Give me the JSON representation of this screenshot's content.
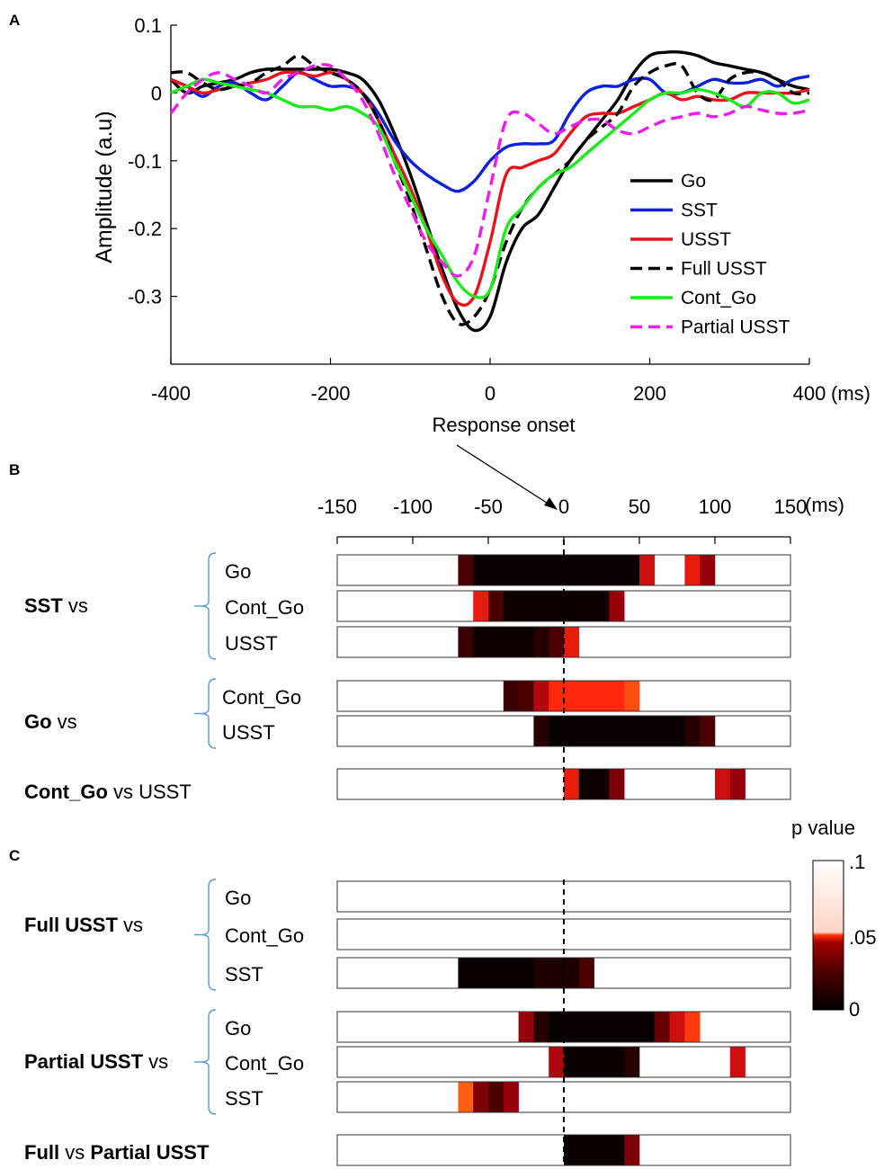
{
  "panels": {
    "a": {
      "letter": "A"
    },
    "b": {
      "letter": "B"
    },
    "c": {
      "letter": "C"
    }
  },
  "chart_data": [
    {
      "id": "A",
      "type": "line",
      "title": "",
      "xlabel": "Response onset",
      "ylabel": "Amplitude (a.u)",
      "x_unit": "(ms)",
      "xlim": [
        -400,
        400
      ],
      "ylim": [
        -0.4,
        0.1
      ],
      "xticks": [
        -400,
        -200,
        0,
        200,
        400
      ],
      "xtick_labels": [
        "-400",
        "-200",
        "0",
        "200",
        "400"
      ],
      "yticks": [
        0.1,
        0,
        -0.1,
        -0.2,
        -0.3
      ],
      "ytick_labels": [
        "0.1",
        "0",
        "-0.1",
        "-0.2",
        "-0.3"
      ],
      "legend_position": "center-right",
      "series": [
        {
          "name": "Go",
          "color": "#000000",
          "style": "solid",
          "x": [
            -400,
            -380,
            -360,
            -340,
            -320,
            -300,
            -280,
            -260,
            -240,
            -220,
            -200,
            -180,
            -160,
            -140,
            -120,
            -100,
            -80,
            -60,
            -40,
            -20,
            0,
            20,
            40,
            60,
            80,
            100,
            120,
            140,
            160,
            180,
            200,
            220,
            240,
            260,
            280,
            300,
            320,
            340,
            360,
            380,
            400
          ],
          "y": [
            0.02,
            0,
            0.01,
            0.015,
            0.02,
            0.03,
            0.035,
            0.035,
            0.035,
            0.035,
            0.035,
            0.03,
            0.02,
            -0.01,
            -0.06,
            -0.12,
            -0.19,
            -0.26,
            -0.32,
            -0.35,
            -0.33,
            -0.25,
            -0.2,
            -0.18,
            -0.14,
            -0.1,
            -0.07,
            -0.04,
            -0.01,
            0.03,
            0.055,
            0.06,
            0.06,
            0.055,
            0.045,
            0.04,
            0.035,
            0.03,
            0.02,
            0.01,
            0.005
          ]
        },
        {
          "name": "SST",
          "color": "#0b22dd",
          "style": "solid",
          "x": [
            -400,
            -380,
            -360,
            -340,
            -320,
            -300,
            -280,
            -260,
            -240,
            -220,
            -200,
            -180,
            -160,
            -140,
            -120,
            -100,
            -80,
            -60,
            -40,
            -20,
            0,
            20,
            40,
            60,
            80,
            100,
            120,
            140,
            160,
            180,
            200,
            220,
            240,
            260,
            280,
            300,
            320,
            340,
            360,
            380,
            400
          ],
          "y": [
            0.02,
            0.01,
            -0.005,
            0.01,
            0.015,
            0.0,
            -0.01,
            0.01,
            0.03,
            0.02,
            0.01,
            0.01,
            0.0,
            -0.03,
            -0.07,
            -0.1,
            -0.12,
            -0.135,
            -0.145,
            -0.13,
            -0.1,
            -0.08,
            -0.075,
            -0.075,
            -0.07,
            -0.03,
            0.0,
            0.01,
            0.01,
            0.02,
            0.02,
            0.0,
            0.0,
            0.01,
            0.02,
            0.015,
            0.015,
            0.02,
            0.01,
            0.02,
            0.025
          ]
        },
        {
          "name": "USST",
          "color": "#e8141c",
          "style": "solid",
          "x": [
            -400,
            -380,
            -360,
            -340,
            -320,
            -300,
            -280,
            -260,
            -240,
            -220,
            -200,
            -180,
            -160,
            -140,
            -120,
            -100,
            -80,
            -60,
            -40,
            -20,
            0,
            20,
            40,
            60,
            80,
            100,
            120,
            140,
            160,
            180,
            200,
            220,
            240,
            260,
            280,
            300,
            320,
            340,
            360,
            380,
            400
          ],
          "y": [
            0.02,
            0.01,
            0.0,
            0.005,
            0.01,
            0.015,
            0.02,
            0.03,
            0.03,
            0.025,
            0.03,
            0.02,
            0.0,
            -0.04,
            -0.09,
            -0.14,
            -0.2,
            -0.27,
            -0.31,
            -0.3,
            -0.22,
            -0.12,
            -0.11,
            -0.1,
            -0.09,
            -0.06,
            -0.035,
            -0.03,
            -0.03,
            -0.02,
            -0.01,
            0.0,
            -0.01,
            -0.005,
            -0.01,
            -0.01,
            0.0,
            0.0,
            0.0,
            0.0,
            0.005
          ]
        },
        {
          "name": "Full USST",
          "color": "#000000",
          "style": "dashed",
          "x": [
            -400,
            -380,
            -360,
            -340,
            -320,
            -300,
            -280,
            -260,
            -240,
            -220,
            -200,
            -180,
            -160,
            -140,
            -120,
            -100,
            -80,
            -60,
            -40,
            -20,
            0,
            20,
            40,
            60,
            80,
            100,
            120,
            140,
            160,
            180,
            200,
            220,
            240,
            260,
            280,
            300,
            320,
            340,
            360,
            380,
            400
          ],
          "y": [
            0.03,
            0.03,
            0.015,
            0.005,
            0.01,
            0.015,
            0.03,
            0.04,
            0.055,
            0.04,
            0.03,
            0.02,
            0.0,
            -0.04,
            -0.1,
            -0.16,
            -0.23,
            -0.3,
            -0.34,
            -0.33,
            -0.29,
            -0.22,
            -0.17,
            -0.14,
            -0.12,
            -0.1,
            -0.07,
            -0.05,
            -0.03,
            0.01,
            0.03,
            0.04,
            0.04,
            0.0,
            -0.01,
            0.02,
            0.03,
            0.03,
            0.02,
            0.0,
            0.0
          ]
        },
        {
          "name": "Cont_Go",
          "color": "#1cea1c",
          "style": "solid",
          "x": [
            -400,
            -380,
            -360,
            -340,
            -320,
            -300,
            -280,
            -260,
            -240,
            -220,
            -200,
            -180,
            -160,
            -140,
            -120,
            -100,
            -80,
            -60,
            -40,
            -20,
            0,
            20,
            40,
            60,
            80,
            100,
            120,
            140,
            160,
            180,
            200,
            220,
            240,
            260,
            280,
            300,
            320,
            340,
            360,
            380,
            400
          ],
          "y": [
            0.0,
            0.01,
            0.02,
            0.015,
            0.01,
            0.005,
            0.0,
            -0.01,
            -0.02,
            -0.02,
            -0.025,
            -0.02,
            -0.03,
            -0.05,
            -0.1,
            -0.15,
            -0.2,
            -0.24,
            -0.28,
            -0.3,
            -0.29,
            -0.2,
            -0.17,
            -0.14,
            -0.12,
            -0.11,
            -0.09,
            -0.07,
            -0.05,
            -0.03,
            -0.01,
            0.0,
            0.0,
            0.005,
            0.0,
            -0.01,
            -0.02,
            0.0,
            0.0,
            -0.015,
            -0.01
          ]
        },
        {
          "name": "Partial USST",
          "color": "#ee1cee",
          "style": "dashed",
          "x": [
            -400,
            -380,
            -360,
            -340,
            -320,
            -300,
            -280,
            -260,
            -240,
            -220,
            -200,
            -180,
            -160,
            -140,
            -120,
            -100,
            -80,
            -60,
            -40,
            -20,
            0,
            20,
            40,
            60,
            80,
            100,
            120,
            140,
            160,
            180,
            200,
            220,
            240,
            260,
            280,
            300,
            320,
            340,
            360,
            380,
            400
          ],
          "y": [
            -0.03,
            0.0,
            0.02,
            0.03,
            0.02,
            0.01,
            0.0,
            0.02,
            0.03,
            0.04,
            0.04,
            0.02,
            -0.01,
            -0.06,
            -0.12,
            -0.17,
            -0.22,
            -0.25,
            -0.27,
            -0.24,
            -0.14,
            -0.04,
            -0.03,
            -0.045,
            -0.06,
            -0.05,
            -0.04,
            -0.04,
            -0.055,
            -0.06,
            -0.05,
            -0.04,
            -0.035,
            -0.03,
            -0.035,
            -0.03,
            -0.02,
            -0.025,
            -0.03,
            -0.03,
            -0.025
          ]
        }
      ]
    },
    {
      "id": "B",
      "type": "heatmap",
      "xlim": [
        -150,
        150
      ],
      "x_unit": "(ms)",
      "xticks": [
        -150,
        -100,
        -50,
        0,
        50,
        100,
        150
      ],
      "xtick_labels": [
        "-150",
        "-100",
        "-50",
        "0",
        "50",
        "100",
        "150"
      ],
      "annotation": "Response onset",
      "groups": [
        {
          "label_bold": "SST",
          "label_rest": " vs",
          "rows": [
            {
              "label": "Go",
              "segments": [
                {
                  "start": -70,
                  "end": -60,
                  "p": 0.02
                },
                {
                  "start": -60,
                  "end": 50,
                  "p": 0.002
                },
                {
                  "start": 50,
                  "end": 60,
                  "p": 0.045
                },
                {
                  "start": 80,
                  "end": 90,
                  "p": 0.05
                },
                {
                  "start": 90,
                  "end": 100,
                  "p": 0.035
                }
              ]
            },
            {
              "label": "Cont_Go",
              "segments": [
                {
                  "start": -60,
                  "end": -50,
                  "p": 0.05
                },
                {
                  "start": -50,
                  "end": -40,
                  "p": 0.02
                },
                {
                  "start": -40,
                  "end": 30,
                  "p": 0.004
                },
                {
                  "start": 30,
                  "end": 40,
                  "p": 0.035
                }
              ]
            },
            {
              "label": "USST",
              "segments": [
                {
                  "start": -70,
                  "end": -60,
                  "p": 0.015
                },
                {
                  "start": -60,
                  "end": -20,
                  "p": 0.004
                },
                {
                  "start": -20,
                  "end": -10,
                  "p": 0.01
                },
                {
                  "start": -10,
                  "end": 0,
                  "p": 0.02
                },
                {
                  "start": 0,
                  "end": 10,
                  "p": 0.05
                }
              ]
            }
          ]
        },
        {
          "label_bold": "Go",
          "label_rest": " vs",
          "rows": [
            {
              "label": "Cont_Go",
              "segments": [
                {
                  "start": -40,
                  "end": -30,
                  "p": 0.015
                },
                {
                  "start": -30,
                  "end": -20,
                  "p": 0.02
                },
                {
                  "start": -20,
                  "end": -10,
                  "p": 0.04
                },
                {
                  "start": -10,
                  "end": 40,
                  "p": 0.055
                },
                {
                  "start": 40,
                  "end": 50,
                  "p": 0.065
                }
              ]
            },
            {
              "label": "USST",
              "segments": [
                {
                  "start": -20,
                  "end": -10,
                  "p": 0.01
                },
                {
                  "start": -10,
                  "end": 80,
                  "p": 0.002
                },
                {
                  "start": 80,
                  "end": 90,
                  "p": 0.01
                },
                {
                  "start": 90,
                  "end": 100,
                  "p": 0.02
                }
              ]
            }
          ]
        },
        {
          "label_bold": "Cont_Go",
          "label_rest": " vs USST",
          "single": true,
          "rows": [
            {
              "label": "",
              "segments": [
                {
                  "start": 0,
                  "end": 10,
                  "p": 0.05
                },
                {
                  "start": 10,
                  "end": 30,
                  "p": 0.004
                },
                {
                  "start": 30,
                  "end": 40,
                  "p": 0.03
                },
                {
                  "start": 100,
                  "end": 110,
                  "p": 0.045
                },
                {
                  "start": 110,
                  "end": 120,
                  "p": 0.035
                }
              ]
            }
          ]
        }
      ]
    },
    {
      "id": "C",
      "type": "heatmap",
      "xlim": [
        -150,
        150
      ],
      "colorbar": {
        "title": "p value",
        "ticks": [
          ".1",
          ".05",
          "0"
        ]
      },
      "groups": [
        {
          "label_bold": "Full USST",
          "label_rest": " vs",
          "rows": [
            {
              "label": "Go",
              "segments": []
            },
            {
              "label": "Cont_Go",
              "segments": []
            },
            {
              "label": "SST",
              "segments": [
                {
                  "start": -70,
                  "end": -20,
                  "p": 0.003
                },
                {
                  "start": -20,
                  "end": 10,
                  "p": 0.008
                },
                {
                  "start": 10,
                  "end": 20,
                  "p": 0.02
                }
              ]
            }
          ]
        },
        {
          "label_bold": "Partial USST",
          "label_rest": " vs",
          "rows": [
            {
              "label": "Go",
              "segments": [
                {
                  "start": -30,
                  "end": -20,
                  "p": 0.035
                },
                {
                  "start": -20,
                  "end": -10,
                  "p": 0.01
                },
                {
                  "start": -10,
                  "end": 60,
                  "p": 0.002
                },
                {
                  "start": 60,
                  "end": 70,
                  "p": 0.025
                },
                {
                  "start": 70,
                  "end": 80,
                  "p": 0.045
                },
                {
                  "start": 80,
                  "end": 90,
                  "p": 0.06
                }
              ]
            },
            {
              "label": "Cont_Go",
              "segments": [
                {
                  "start": -10,
                  "end": 0,
                  "p": 0.04
                },
                {
                  "start": 0,
                  "end": 40,
                  "p": 0.003
                },
                {
                  "start": 40,
                  "end": 50,
                  "p": 0.01
                },
                {
                  "start": 110,
                  "end": 120,
                  "p": 0.045
                }
              ]
            },
            {
              "label": "SST",
              "segments": [
                {
                  "start": -70,
                  "end": -60,
                  "p": 0.07
                },
                {
                  "start": -60,
                  "end": -50,
                  "p": 0.03
                },
                {
                  "start": -50,
                  "end": -40,
                  "p": 0.02
                },
                {
                  "start": -40,
                  "end": -30,
                  "p": 0.035
                }
              ]
            }
          ]
        },
        {
          "label_bold": "Full",
          "label_rest": " vs ",
          "label_bold2": "Partial USST",
          "single": true,
          "rows": [
            {
              "label": "",
              "segments": [
                {
                  "start": 0,
                  "end": 40,
                  "p": 0.003
                },
                {
                  "start": 40,
                  "end": 50,
                  "p": 0.03
                }
              ]
            }
          ]
        }
      ]
    }
  ]
}
